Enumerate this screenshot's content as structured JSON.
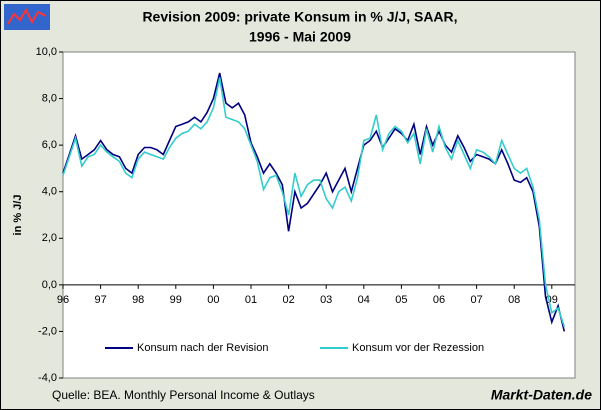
{
  "chart_data": {
    "type": "line",
    "title": [
      "Revision 2009: private Konsum in % J/J, SAAR,",
      "1996 - Mai 2009"
    ],
    "y_label": "in % J/J",
    "source": "Quelle: BEA. Monthly Personal Income & Outlays",
    "brand": "Markt-Daten.de",
    "categories": [
      "96",
      null,
      null,
      null,
      null,
      null,
      "97",
      null,
      null,
      null,
      null,
      null,
      "98",
      null,
      null,
      null,
      null,
      null,
      "99",
      null,
      null,
      null,
      null,
      null,
      "00",
      null,
      null,
      null,
      null,
      null,
      "01",
      null,
      null,
      null,
      null,
      null,
      "02",
      null,
      null,
      null,
      null,
      null,
      "03",
      null,
      null,
      null,
      null,
      null,
      "04",
      null,
      null,
      null,
      null,
      null,
      "05",
      null,
      null,
      null,
      null,
      null,
      "06",
      null,
      null,
      null,
      null,
      null,
      "07",
      null,
      null,
      null,
      null,
      null,
      "08",
      null,
      null,
      null,
      null,
      null,
      "09",
      null,
      null
    ],
    "series": [
      {
        "name": "Konsum nach der Revision",
        "color": "#000080",
        "values": [
          4.8,
          5.6,
          6.4,
          5.4,
          5.6,
          5.8,
          6.2,
          5.8,
          5.6,
          5.5,
          5.0,
          4.8,
          5.6,
          5.9,
          5.9,
          5.8,
          5.6,
          6.2,
          6.8,
          6.9,
          7.0,
          7.2,
          7.0,
          7.4,
          8.0,
          9.1,
          7.8,
          7.6,
          7.8,
          7.3,
          6.1,
          5.5,
          4.8,
          5.2,
          4.8,
          4.3,
          2.3,
          4.0,
          3.3,
          3.5,
          3.9,
          4.3,
          4.8,
          4.0,
          4.5,
          5.0,
          4.0,
          5.0,
          6.0,
          6.2,
          6.6,
          5.9,
          6.3,
          6.7,
          6.5,
          6.2,
          6.9,
          5.6,
          6.8,
          6.0,
          6.6,
          6.0,
          5.7,
          6.4,
          5.9,
          5.3,
          5.6,
          5.5,
          5.4,
          5.2,
          5.8,
          5.2,
          4.5,
          4.4,
          4.6,
          4.0,
          2.5,
          -0.5,
          -1.6,
          -0.9,
          -2.0
        ]
      },
      {
        "name": "Konsum vor der Rezession",
        "color": "#33cccc",
        "values": [
          4.7,
          5.5,
          6.3,
          5.1,
          5.5,
          5.6,
          6.0,
          5.7,
          5.5,
          5.3,
          4.8,
          4.6,
          5.4,
          5.7,
          5.6,
          5.5,
          5.4,
          5.9,
          6.3,
          6.5,
          6.6,
          6.9,
          6.7,
          7.0,
          7.6,
          8.9,
          7.2,
          7.1,
          7.0,
          6.7,
          6.0,
          5.3,
          4.1,
          4.6,
          4.7,
          4.0,
          3.0,
          4.8,
          3.8,
          4.3,
          4.5,
          4.5,
          3.7,
          3.3,
          4.0,
          4.2,
          3.6,
          4.6,
          6.2,
          6.3,
          7.3,
          5.8,
          6.5,
          6.8,
          6.6,
          6.1,
          6.5,
          5.2,
          6.7,
          5.7,
          6.8,
          5.9,
          5.4,
          6.2,
          5.6,
          5.0,
          5.8,
          5.7,
          5.5,
          5.2,
          6.2,
          5.6,
          5.0,
          4.8,
          5.0,
          4.2,
          2.8,
          0.0,
          -1.2,
          -1.0,
          -1.8
        ]
      }
    ],
    "ylim": [
      -4,
      10
    ],
    "yticks": [
      {
        "value": -4,
        "label": "-4,0"
      },
      {
        "value": -2,
        "label": "-2,0"
      },
      {
        "value": 0,
        "label": "0,0"
      },
      {
        "value": 2,
        "label": "2,0"
      },
      {
        "value": 4,
        "label": "4,0"
      },
      {
        "value": 6,
        "label": "6,0"
      },
      {
        "value": 8,
        "label": "8,0"
      },
      {
        "value": 10,
        "label": "10,0"
      }
    ],
    "grid": false
  }
}
